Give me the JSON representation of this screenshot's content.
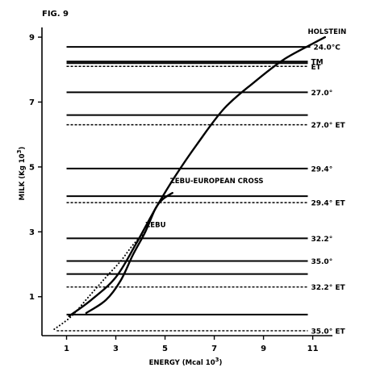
{
  "figure_label": "FIG. 9",
  "chart_data": {
    "type": "line",
    "xlabel": "ENERGY (Mcal 10",
    "xlabel_sup": "3",
    "xlabel_close": ")",
    "ylabel": "MILK (Kg 10",
    "ylabel_sup": "3",
    "ylabel_close": ")",
    "xlim": [
      0,
      11.8
    ],
    "ylim": [
      -0.2,
      9.3
    ],
    "x_ticks": [
      1,
      3,
      5,
      7,
      9,
      11
    ],
    "y_ticks": [
      1,
      3,
      5,
      7,
      9
    ],
    "x_tick_labels": [
      "1",
      "3",
      "5",
      "7",
      "9",
      "11"
    ],
    "y_tick_labels": [
      "1",
      "3",
      "5",
      "7",
      "9"
    ],
    "series": [
      {
        "name": "HOLSTEIN",
        "style": "solid",
        "points": [
          [
            1.1,
            0.4
          ],
          [
            2.0,
            0.9
          ],
          [
            3.0,
            1.6
          ],
          [
            3.8,
            2.6
          ],
          [
            4.6,
            3.7
          ],
          [
            5.4,
            4.7
          ],
          [
            6.3,
            5.7
          ],
          [
            7.4,
            6.8
          ],
          [
            8.6,
            7.6
          ],
          [
            9.8,
            8.3
          ],
          [
            11.0,
            8.8
          ],
          [
            11.5,
            9.0
          ]
        ]
      },
      {
        "name": "ZEBU-EUROPEAN CROSS",
        "style": "solid",
        "points": [
          [
            1.8,
            0.5
          ],
          [
            2.6,
            0.9
          ],
          [
            3.2,
            1.5
          ],
          [
            3.7,
            2.3
          ],
          [
            4.2,
            3.0
          ],
          [
            4.6,
            3.7
          ],
          [
            4.9,
            4.0
          ],
          [
            5.3,
            4.2
          ]
        ]
      },
      {
        "name": "ZEBU",
        "style": "dotted",
        "points": [
          [
            0.5,
            0.0
          ],
          [
            1.2,
            0.4
          ],
          [
            1.9,
            1.0
          ],
          [
            2.6,
            1.6
          ],
          [
            3.2,
            2.1
          ],
          [
            3.7,
            2.6
          ],
          [
            4.2,
            3.0
          ]
        ]
      }
    ],
    "reference_lines": [
      {
        "label": "24.0°C",
        "y": 8.7,
        "style": "solid",
        "xmin": 1.0,
        "xmax": 10.9
      },
      {
        "label": "TM",
        "y": 8.25,
        "style": "solid",
        "xmin": 1.0,
        "xmax": 10.8
      },
      {
        "label": "ET",
        "y": 8.1,
        "style": "dashed",
        "xmin": 1.0,
        "xmax": 10.8
      },
      {
        "label": "27.0°",
        "y": 7.3,
        "style": "solid",
        "xmin": 1.0,
        "xmax": 10.8
      },
      {
        "label": "27.0° ET",
        "y": 6.3,
        "style": "dashed",
        "xmin": 1.0,
        "xmax": 10.8
      },
      {
        "label": "29.4°",
        "y": 4.95,
        "style": "solid",
        "xmin": 1.0,
        "xmax": 10.8
      },
      {
        "label": "29.4° ET",
        "y": 3.9,
        "style": "dashed",
        "xmin": 1.0,
        "xmax": 10.8
      },
      {
        "label": "32.2°",
        "y": 2.8,
        "style": "solid",
        "xmin": 1.0,
        "xmax": 10.8
      },
      {
        "label": "35.0°",
        "y": 2.1,
        "style": "solid",
        "xmin": 1.0,
        "xmax": 10.8
      },
      {
        "label": "32.2° ET",
        "y": 1.3,
        "style": "dashed",
        "xmin": 1.0,
        "xmax": 10.8
      },
      {
        "label": "35.0° ET",
        "y": -0.05,
        "style": "dashed",
        "xmin": 0.6,
        "xmax": 10.8
      }
    ],
    "unlabeled_lines": [
      {
        "y": 8.2,
        "style": "solid",
        "xmin": 1.0,
        "xmax": 10.8
      },
      {
        "y": 6.6,
        "style": "solid",
        "xmin": 1.0,
        "xmax": 10.8
      },
      {
        "y": 4.1,
        "style": "solid",
        "xmin": 1.0,
        "xmax": 10.8
      },
      {
        "y": 1.7,
        "style": "solid",
        "xmin": 1.0,
        "xmax": 10.8
      },
      {
        "y": 0.45,
        "style": "solid",
        "xmin": 1.0,
        "xmax": 10.8
      }
    ]
  }
}
